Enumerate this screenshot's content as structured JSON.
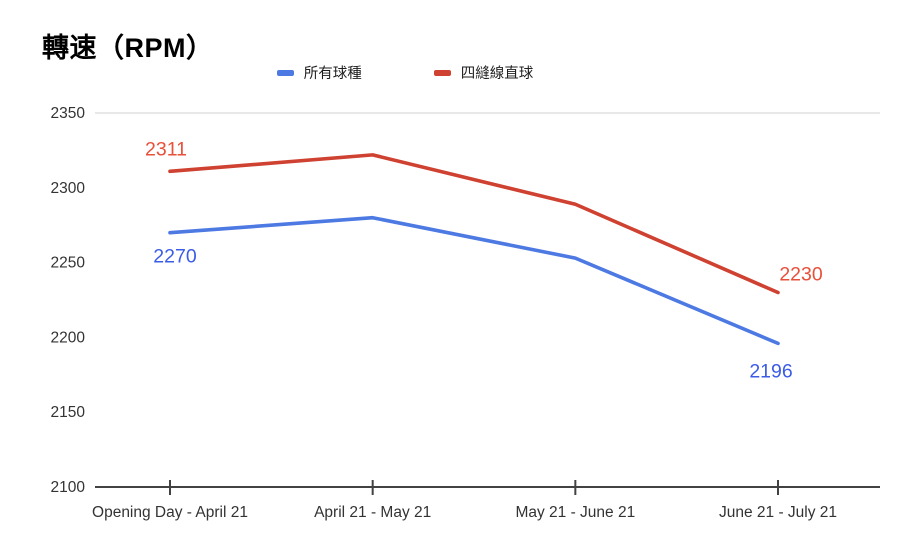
{
  "page": {
    "title": "轉速（RPM）"
  },
  "chart_data": {
    "type": "line",
    "title": "轉速（RPM）",
    "categories": [
      "Opening Day - April 21",
      "April 21 - May 21",
      "May 21 - June 21",
      "June 21 - July 21"
    ],
    "series": [
      {
        "name": "所有球種",
        "color": "#4d79e3",
        "label_color": "#3b5ce6",
        "values": [
          2270,
          2280,
          2253,
          2196
        ],
        "labeled_points": [
          0,
          3
        ],
        "point_labels": [
          "2270",
          "2196"
        ]
      },
      {
        "name": "四縫線直球",
        "color": "#cf4130",
        "label_color": "#e8503a",
        "values": [
          2311,
          2322,
          2289,
          2230
        ],
        "labeled_points": [
          0,
          3
        ],
        "point_labels": [
          "2311",
          "2230"
        ]
      }
    ],
    "ylim": [
      2100,
      2350
    ],
    "yticks": [
      2100,
      2150,
      2200,
      2250,
      2300,
      2350
    ],
    "xlabel": "",
    "ylabel": "",
    "grid": "top-line-only",
    "legend_position": "top",
    "axis_color": "#424242",
    "gridline_color": "#dadada",
    "tick_label_color": "#333333"
  }
}
